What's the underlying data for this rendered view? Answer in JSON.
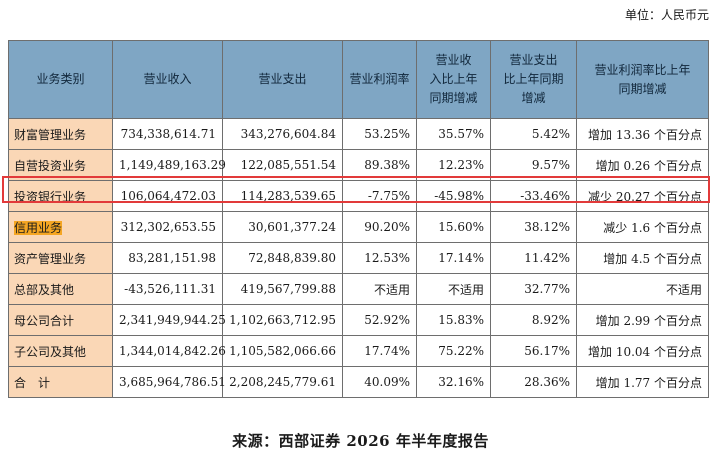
{
  "unit_label": "单位：人民币元",
  "headers": [
    "业务类别",
    "营业收入",
    "营业支出",
    "营业利润率",
    "营业收入比上年同期增减",
    "营业支出比上年同期增减",
    "营业利润率比上年同期增减"
  ],
  "header_lines": [
    [
      "业务类别"
    ],
    [
      "营业收入"
    ],
    [
      "营业支出"
    ],
    [
      "营业利润率"
    ],
    [
      "营业收",
      "入比上年",
      "同期增减"
    ],
    [
      "营业支出",
      "比上年同期",
      "增减"
    ],
    [
      "营业利润率比上年",
      "同期增减"
    ]
  ],
  "rows": [
    {
      "category": "财富管理业务",
      "revenue": "734,338,614.71",
      "expense": "343,276,604.84",
      "margin": "53.25%",
      "rev_change": "35.57%",
      "exp_change": "5.42%",
      "margin_change": "增加 13.36 个百分点"
    },
    {
      "category": "自营投资业务",
      "revenue": "1,149,489,163.29",
      "expense": "122,085,551.54",
      "margin": "89.38%",
      "rev_change": "12.23%",
      "exp_change": "9.57%",
      "margin_change": "增加 0.26 个百分点"
    },
    {
      "category": "投资银行业务",
      "revenue": "106,064,472.03",
      "expense": "114,283,539.65",
      "margin": "-7.75%",
      "rev_change": "-45.98%",
      "exp_change": "-33.46%",
      "margin_change": "减少 20.27 个百分点"
    },
    {
      "category": "信用业务",
      "revenue": "312,302,653.55",
      "expense": "30,601,377.24",
      "margin": "90.20%",
      "rev_change": "15.60%",
      "exp_change": "38.12%",
      "margin_change": "减少 1.6 个百分点"
    },
    {
      "category": "资产管理业务",
      "revenue": "83,281,151.98",
      "expense": "72,848,839.80",
      "margin": "12.53%",
      "rev_change": "17.14%",
      "exp_change": "11.42%",
      "margin_change": "增加 4.5 个百分点"
    },
    {
      "category": "总部及其他",
      "revenue": "-43,526,111.31",
      "expense": "419,567,799.88",
      "margin": "不适用",
      "rev_change": "不适用",
      "exp_change": "32.77%",
      "margin_change": "不适用"
    },
    {
      "category": "母公司合计",
      "revenue": "2,341,949,944.25",
      "expense": "1,102,663,712.95",
      "margin": "52.92%",
      "rev_change": "15.83%",
      "exp_change": "8.92%",
      "margin_change": "增加 2.99 个百分点"
    },
    {
      "category": "子公司及其他",
      "revenue": "1,344,014,842.26",
      "expense": "1,105,582,066.66",
      "margin": "17.74%",
      "rev_change": "75.22%",
      "exp_change": "56.17%",
      "margin_change": "增加 10.04 个百分点"
    },
    {
      "category": "合　计",
      "revenue": "3,685,964,786.51",
      "expense": "2,208,245,779.61",
      "margin": "40.09%",
      "rev_change": "32.16%",
      "exp_change": "28.36%",
      "margin_change": "增加 1.77 个百分点"
    }
  ],
  "highlighted_row": "投资银行业务",
  "highlighted_category": "信用业务",
  "source": "来源：西部证券 2026 年半年度报告",
  "colors": {
    "header_bg": "#7fa6c4",
    "category_bg": "#fad7b6",
    "highlight_border": "#e23a3a",
    "category_highlight": "#f5a623"
  }
}
